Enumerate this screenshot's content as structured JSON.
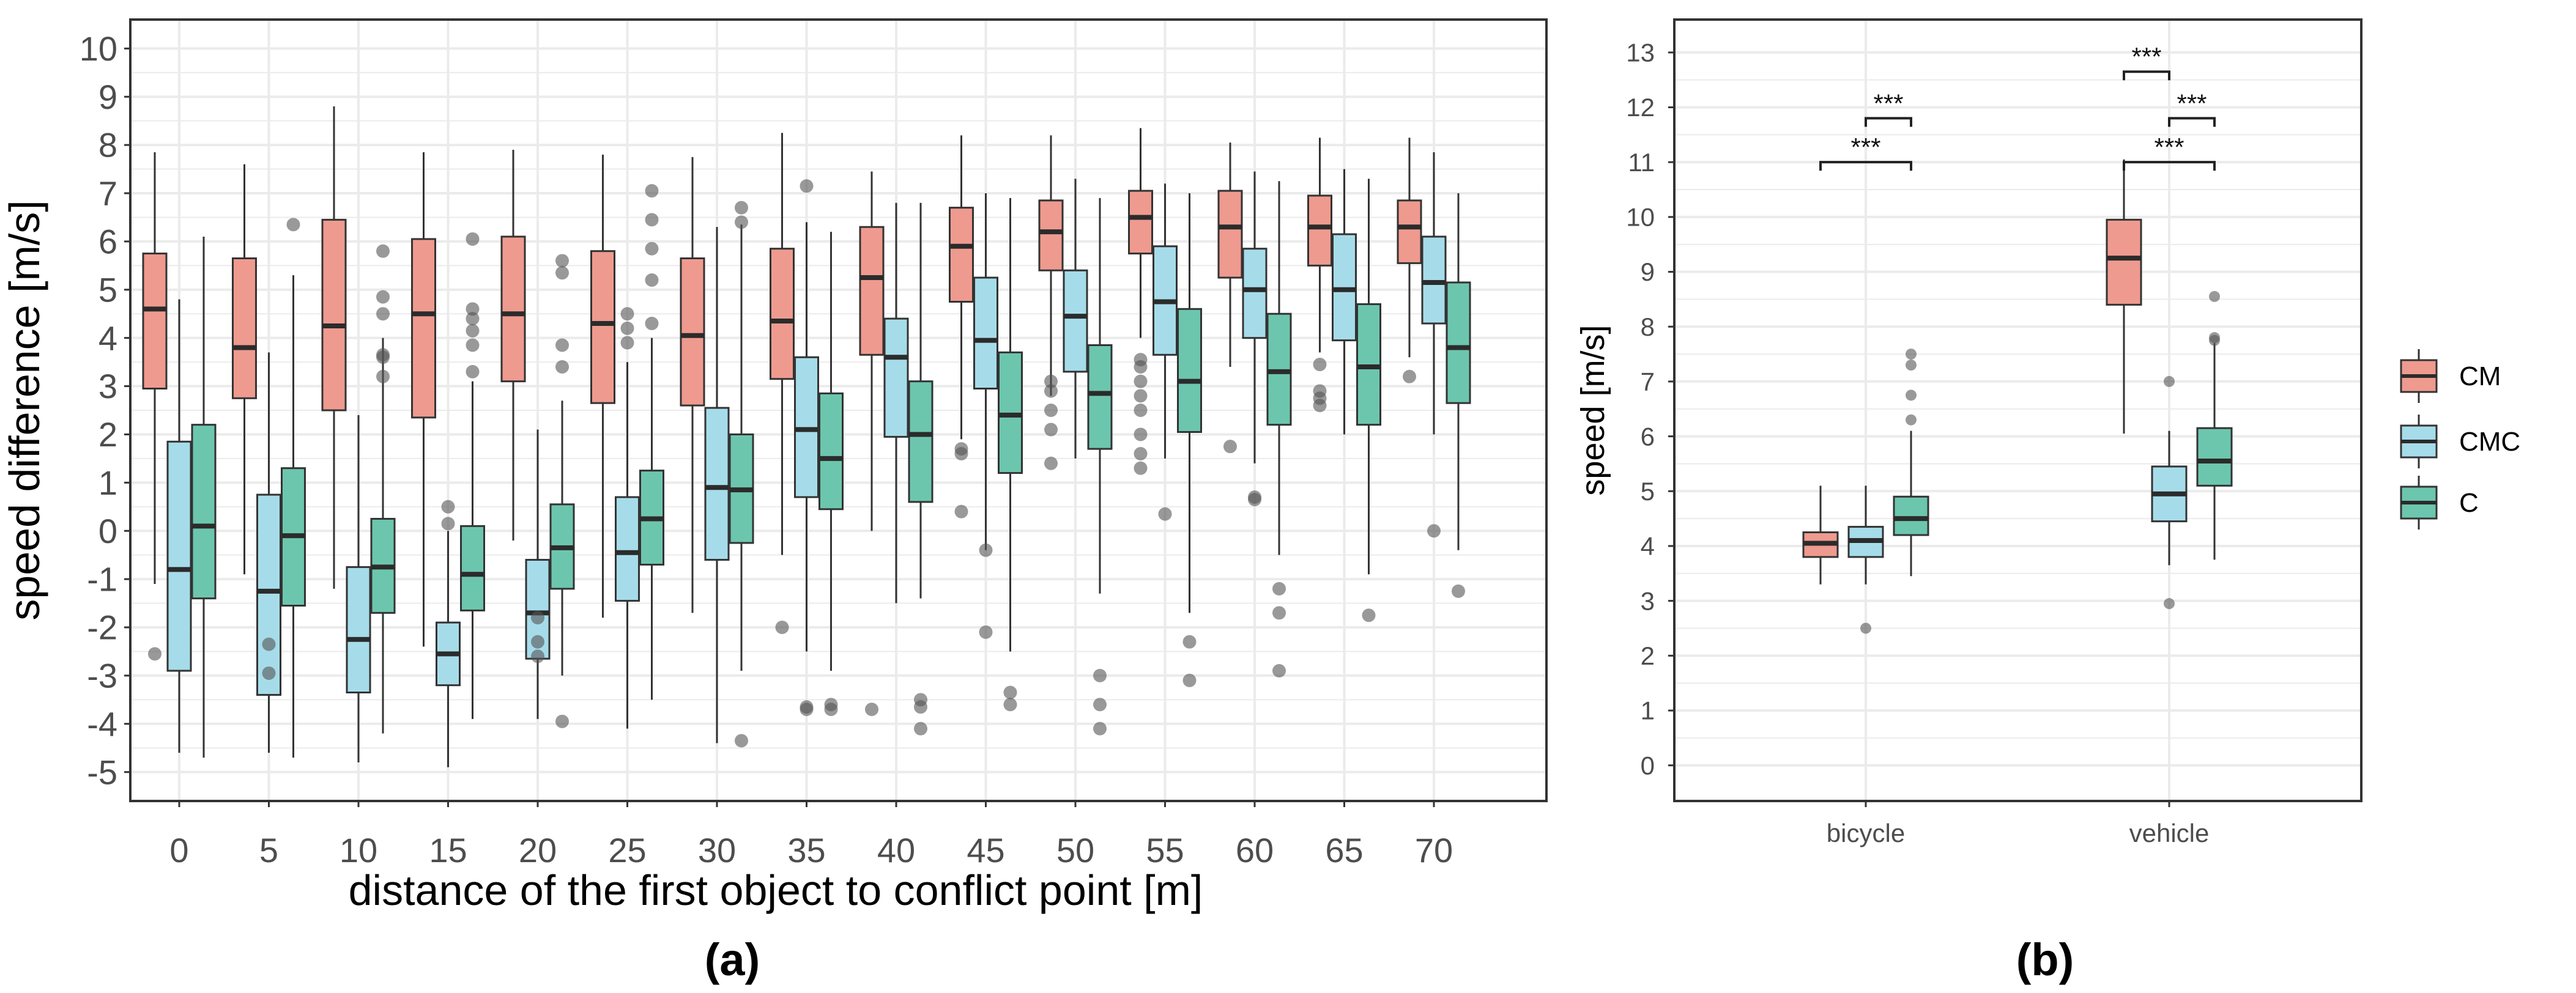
{
  "colors": {
    "CM": "#ef9a8f",
    "CMC": "#a6dcea",
    "C": "#6cc6ad",
    "grid": "#ebebeb",
    "frame": "#333333",
    "whisker": "#333333",
    "outlier": "#555555"
  },
  "chart_data": [
    {
      "panel_label": "(a)",
      "type": "boxplot",
      "xlabel": "distance of the first object to conflict point [m]",
      "ylabel": "speed difference [m/s]",
      "ylim": [
        -5.6,
        10.6
      ],
      "yticks": [
        "-5",
        "-4",
        "-3",
        "-2",
        "-1",
        "0",
        "1",
        "2",
        "3",
        "4",
        "5",
        "6",
        "7",
        "8",
        "9",
        "10"
      ],
      "categories": [
        "0",
        "5",
        "10",
        "15",
        "20",
        "25",
        "30",
        "35",
        "40",
        "45",
        "50",
        "55",
        "60",
        "65",
        "70"
      ],
      "series": [
        {
          "name": "CM",
          "boxes": [
            {
              "min": -1.1,
              "q1": 2.95,
              "median": 4.6,
              "q3": 5.75,
              "max": 7.85,
              "outliers": [
                -2.55
              ]
            },
            {
              "min": -0.9,
              "q1": 2.75,
              "median": 3.8,
              "q3": 5.65,
              "max": 7.6,
              "outliers": []
            },
            {
              "min": -1.2,
              "q1": 2.5,
              "median": 4.25,
              "q3": 6.45,
              "max": 8.8,
              "outliers": []
            },
            {
              "min": -2.4,
              "q1": 2.35,
              "median": 4.5,
              "q3": 6.05,
              "max": 7.85,
              "outliers": []
            },
            {
              "min": -0.2,
              "q1": 3.1,
              "median": 4.5,
              "q3": 6.1,
              "max": 7.9,
              "outliers": []
            },
            {
              "min": -1.8,
              "q1": 2.65,
              "median": 4.3,
              "q3": 5.8,
              "max": 7.8,
              "outliers": []
            },
            {
              "min": -1.7,
              "q1": 2.6,
              "median": 4.05,
              "q3": 5.65,
              "max": 7.75,
              "outliers": []
            },
            {
              "min": -0.5,
              "q1": 3.15,
              "median": 4.35,
              "q3": 5.85,
              "max": 8.25,
              "outliers": [
                -2.0
              ]
            },
            {
              "min": 0.0,
              "q1": 3.65,
              "median": 5.25,
              "q3": 6.3,
              "max": 7.45,
              "outliers": [
                -3.7
              ]
            },
            {
              "min": 1.9,
              "q1": 4.75,
              "median": 5.9,
              "q3": 6.7,
              "max": 8.2,
              "outliers": [
                1.7,
                1.6,
                0.4
              ]
            },
            {
              "min": 2.8,
              "q1": 5.4,
              "median": 6.2,
              "q3": 6.85,
              "max": 8.2,
              "outliers": [
                3.1,
                2.9,
                2.5,
                2.1,
                1.4
              ]
            },
            {
              "min": 4.0,
              "q1": 5.75,
              "median": 6.5,
              "q3": 7.05,
              "max": 8.35,
              "outliers": [
                3.55,
                3.4,
                3.1,
                2.8,
                2.5,
                2.0,
                1.6,
                1.3
              ]
            },
            {
              "min": 3.4,
              "q1": 5.25,
              "median": 6.3,
              "q3": 7.05,
              "max": 8.05,
              "outliers": [
                1.75
              ]
            },
            {
              "min": 3.7,
              "q1": 5.5,
              "median": 6.3,
              "q3": 6.95,
              "max": 8.15,
              "outliers": [
                3.45,
                2.9,
                2.75,
                2.6
              ]
            },
            {
              "min": 3.6,
              "q1": 5.55,
              "median": 6.3,
              "q3": 6.85,
              "max": 8.15,
              "outliers": [
                3.2
              ]
            }
          ]
        },
        {
          "name": "CMC",
          "boxes": [
            {
              "min": -4.6,
              "q1": -2.9,
              "median": -0.8,
              "q3": 1.85,
              "max": 4.8,
              "outliers": []
            },
            {
              "min": -4.6,
              "q1": -3.4,
              "median": -1.25,
              "q3": 0.75,
              "max": 3.7,
              "outliers": [
                -2.35,
                -2.95
              ]
            },
            {
              "min": -4.8,
              "q1": -3.35,
              "median": -2.25,
              "q3": -0.75,
              "max": 2.4,
              "outliers": []
            },
            {
              "min": -4.9,
              "q1": -3.2,
              "median": -2.55,
              "q3": -1.9,
              "max": 0.0,
              "outliers": [
                0.5,
                0.15
              ]
            },
            {
              "min": -3.9,
              "q1": -2.65,
              "median": -1.7,
              "q3": -0.6,
              "max": 2.1,
              "outliers": [
                -1.8,
                -2.3,
                -2.6
              ]
            },
            {
              "min": -4.1,
              "q1": -1.45,
              "median": -0.45,
              "q3": 0.7,
              "max": 3.5,
              "outliers": [
                4.5,
                4.2,
                3.9
              ]
            },
            {
              "min": -4.4,
              "q1": -0.6,
              "median": 0.9,
              "q3": 2.55,
              "max": 6.3,
              "outliers": []
            },
            {
              "min": -2.5,
              "q1": 0.7,
              "median": 2.1,
              "q3": 3.6,
              "max": 6.4,
              "outliers": [
                7.15,
                -3.65,
                -3.7
              ]
            },
            {
              "min": -1.5,
              "q1": 1.95,
              "median": 3.6,
              "q3": 4.4,
              "max": 6.8,
              "outliers": []
            },
            {
              "min": -0.4,
              "q1": 2.95,
              "median": 3.95,
              "q3": 5.25,
              "max": 7.0,
              "outliers": [
                -0.4,
                -2.1
              ]
            },
            {
              "min": 1.5,
              "q1": 3.3,
              "median": 4.45,
              "q3": 5.4,
              "max": 7.3,
              "outliers": []
            },
            {
              "min": 1.5,
              "q1": 3.65,
              "median": 4.75,
              "q3": 5.9,
              "max": 7.2,
              "outliers": [
                0.35
              ]
            },
            {
              "min": 1.4,
              "q1": 4.0,
              "median": 5.0,
              "q3": 5.85,
              "max": 7.45,
              "outliers": [
                0.7,
                0.65
              ]
            },
            {
              "min": 2.0,
              "q1": 3.95,
              "median": 5.0,
              "q3": 6.15,
              "max": 7.5,
              "outliers": []
            },
            {
              "min": 2.0,
              "q1": 4.3,
              "median": 5.15,
              "q3": 6.1,
              "max": 7.85,
              "outliers": [
                0.0
              ]
            }
          ]
        },
        {
          "name": "C",
          "boxes": [
            {
              "min": -4.7,
              "q1": -1.4,
              "median": 0.1,
              "q3": 2.2,
              "max": 6.1,
              "outliers": []
            },
            {
              "min": -4.7,
              "q1": -1.55,
              "median": -0.1,
              "q3": 1.3,
              "max": 5.3,
              "outliers": [
                6.35
              ]
            },
            {
              "min": -4.2,
              "q1": -1.7,
              "median": -0.75,
              "q3": 0.25,
              "max": 4.0,
              "outliers": [
                5.8,
                4.85,
                4.5,
                3.65,
                3.6,
                3.2
              ]
            },
            {
              "min": -3.9,
              "q1": -1.65,
              "median": -0.9,
              "q3": 0.1,
              "max": 3.1,
              "outliers": [
                6.05,
                4.6,
                4.4,
                4.15,
                3.85,
                3.3
              ]
            },
            {
              "min": -3.0,
              "q1": -1.2,
              "median": -0.35,
              "q3": 0.55,
              "max": 2.7,
              "outliers": [
                5.6,
                5.35,
                3.85,
                3.4,
                -3.95
              ]
            },
            {
              "min": -3.5,
              "q1": -0.7,
              "median": 0.25,
              "q3": 1.25,
              "max": 4.0,
              "outliers": [
                7.05,
                6.45,
                5.85,
                5.2,
                4.3
              ]
            },
            {
              "min": -2.9,
              "q1": -0.25,
              "median": 0.85,
              "q3": 2.0,
              "max": 6.35,
              "outliers": [
                6.7,
                6.4,
                -4.35
              ]
            },
            {
              "min": -2.9,
              "q1": 0.45,
              "median": 1.5,
              "q3": 2.85,
              "max": 6.2,
              "outliers": [
                -3.6,
                -3.7
              ]
            },
            {
              "min": -1.4,
              "q1": 0.6,
              "median": 2.0,
              "q3": 3.1,
              "max": 6.8,
              "outliers": [
                -3.5,
                -3.65,
                -4.1
              ]
            },
            {
              "min": -2.5,
              "q1": 1.2,
              "median": 2.4,
              "q3": 3.7,
              "max": 6.9,
              "outliers": [
                -3.35,
                -3.6
              ]
            },
            {
              "min": -1.3,
              "q1": 1.7,
              "median": 2.85,
              "q3": 3.85,
              "max": 6.9,
              "outliers": [
                -3.0,
                -3.6,
                -4.1
              ]
            },
            {
              "min": -1.7,
              "q1": 2.05,
              "median": 3.1,
              "q3": 4.6,
              "max": 7.0,
              "outliers": [
                -2.3,
                -3.1
              ]
            },
            {
              "min": -0.5,
              "q1": 2.2,
              "median": 3.3,
              "q3": 4.5,
              "max": 7.25,
              "outliers": [
                -1.2,
                -1.7,
                -2.9
              ]
            },
            {
              "min": -0.9,
              "q1": 2.2,
              "median": 3.4,
              "q3": 4.7,
              "max": 7.3,
              "outliers": [
                -1.75
              ]
            },
            {
              "min": -0.4,
              "q1": 2.65,
              "median": 3.8,
              "q3": 5.15,
              "max": 7.0,
              "outliers": [
                -1.25
              ]
            }
          ]
        }
      ]
    },
    {
      "panel_label": "(b)",
      "type": "boxplot",
      "xlabel": "",
      "ylabel": "speed [m/s]",
      "ylim": [
        -0.65,
        13.6
      ],
      "yticks": [
        "0",
        "1",
        "2",
        "3",
        "4",
        "5",
        "6",
        "7",
        "8",
        "9",
        "10",
        "11",
        "12",
        "13"
      ],
      "categories": [
        "bicycle",
        "vehicle"
      ],
      "series": [
        {
          "name": "CM",
          "boxes": [
            {
              "min": 3.3,
              "q1": 3.8,
              "median": 4.05,
              "q3": 4.25,
              "max": 5.1,
              "outliers": []
            },
            {
              "min": 6.05,
              "q1": 8.4,
              "median": 9.25,
              "q3": 9.95,
              "max": 11.05,
              "outliers": []
            }
          ]
        },
        {
          "name": "CMC",
          "boxes": [
            {
              "min": 3.3,
              "q1": 3.8,
              "median": 4.1,
              "q3": 4.35,
              "max": 5.1,
              "outliers": [
                2.5
              ]
            },
            {
              "min": 3.65,
              "q1": 4.45,
              "median": 4.95,
              "q3": 5.45,
              "max": 6.1,
              "outliers": [
                7.0,
                2.95
              ]
            }
          ]
        },
        {
          "name": "C",
          "boxes": [
            {
              "min": 3.45,
              "q1": 4.2,
              "median": 4.5,
              "q3": 4.9,
              "max": 6.1,
              "outliers": [
                7.5,
                7.3,
                6.75,
                6.3
              ]
            },
            {
              "min": 3.75,
              "q1": 5.1,
              "median": 5.55,
              "q3": 6.15,
              "max": 7.7,
              "outliers": [
                8.55,
                7.8,
                7.75
              ]
            }
          ]
        }
      ],
      "significance": [
        {
          "category": "bicycle",
          "from": "CMC",
          "to": "C",
          "y": 11.8,
          "label": "***"
        },
        {
          "category": "bicycle",
          "from": "CM",
          "to": "C",
          "y": 11.0,
          "label": "***"
        },
        {
          "category": "vehicle",
          "from": "CM",
          "to": "CMC",
          "y": 12.65,
          "label": "***"
        },
        {
          "category": "vehicle",
          "from": "CMC",
          "to": "C",
          "y": 11.8,
          "label": "***"
        },
        {
          "category": "vehicle",
          "from": "CM",
          "to": "C",
          "y": 11.0,
          "label": "***"
        }
      ],
      "legend": {
        "position": "right",
        "entries": [
          "CM",
          "CMC",
          "C"
        ]
      }
    }
  ]
}
